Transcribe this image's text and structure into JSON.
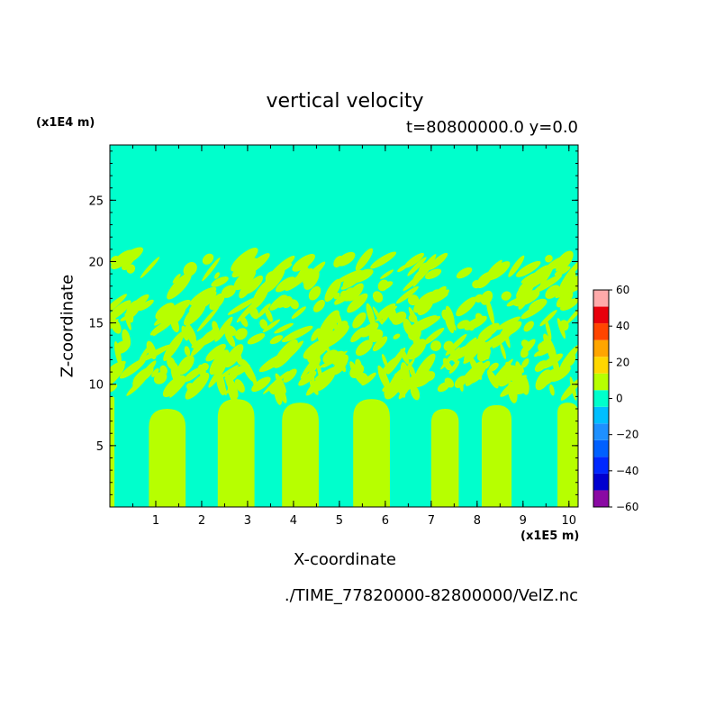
{
  "chart_data": {
    "type": "heatmap",
    "title": "vertical velocity",
    "subtitle": "t=80800000.0 y=0.0",
    "xlabel": "X-coordinate",
    "ylabel": "Z-coordinate",
    "x_scale_note": "(x1E5 m)",
    "z_scale_note": "(x1E4 m)",
    "source_file": "./TIME_77820000-82800000/VelZ.nc",
    "xlim": [
      0,
      10.2
    ],
    "ylim": [
      0,
      29.5
    ],
    "x_ticks": [
      "1",
      "2",
      "3",
      "4",
      "5",
      "6",
      "7",
      "8",
      "9",
      "10"
    ],
    "y_ticks": [
      "5",
      "10",
      "15",
      "20",
      "25"
    ],
    "colorbar": {
      "tick_labels": [
        "60",
        "40",
        "20",
        "0",
        "−20",
        "−40",
        "−60"
      ],
      "levels": [
        -60,
        -50,
        -40,
        -30,
        -20,
        -10,
        0,
        10,
        20,
        30,
        40,
        50,
        60
      ],
      "colors": [
        "#8a0aa3",
        "#0000d0",
        "#0028ff",
        "#0060ff",
        "#1e90ff",
        "#00bfff",
        "#00ffcc",
        "#b7ff00",
        "#ffd700",
        "#ffa500",
        "#ff4500",
        "#e8000b",
        "#ffaaaa"
      ]
    },
    "background_value_range": [
      -10,
      0
    ],
    "background_color": "#00ffcc",
    "positive_color": "#b7ff00",
    "updraft_columns": [
      {
        "x_start": 0.0,
        "x_end": 0.1,
        "z_top": 9.0
      },
      {
        "x_start": 0.85,
        "x_end": 1.65,
        "z_top": 8.0
      },
      {
        "x_start": 2.35,
        "x_end": 3.15,
        "z_top": 8.8
      },
      {
        "x_start": 3.75,
        "x_end": 4.55,
        "z_top": 8.5
      },
      {
        "x_start": 5.3,
        "x_end": 6.1,
        "z_top": 8.8
      },
      {
        "x_start": 7.0,
        "x_end": 7.6,
        "z_top": 8.0
      },
      {
        "x_start": 8.1,
        "x_end": 8.75,
        "z_top": 8.3
      },
      {
        "x_start": 9.75,
        "x_end": 10.2,
        "z_top": 8.5
      }
    ],
    "turbulent_layer_z": [
      9.5,
      20.5
    ]
  }
}
